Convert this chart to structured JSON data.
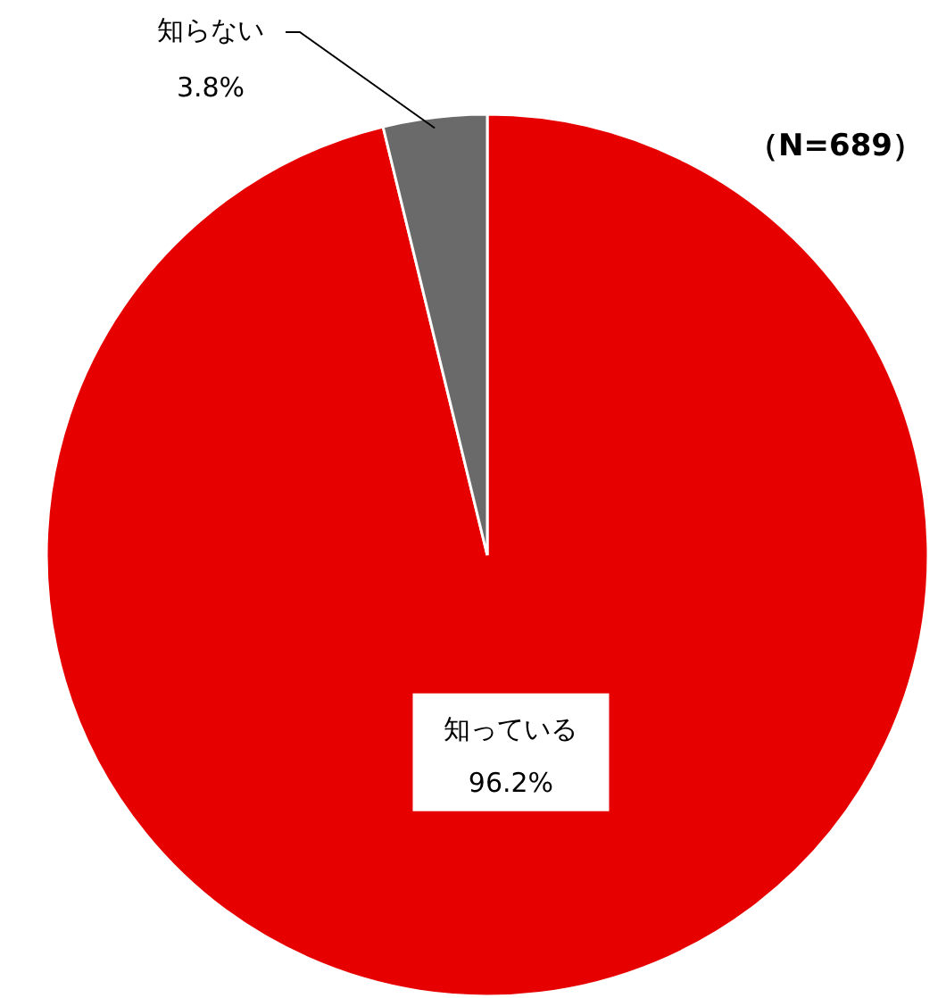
{
  "chart_data": {
    "type": "pie",
    "categories": [
      "知っている",
      "知らない"
    ],
    "values": [
      96.2,
      3.8
    ],
    "colors": [
      "#e60000",
      "#6a6a6a"
    ],
    "value_labels": [
      "96.2%",
      "3.8%"
    ],
    "annotations": [
      "（N=689）"
    ]
  }
}
